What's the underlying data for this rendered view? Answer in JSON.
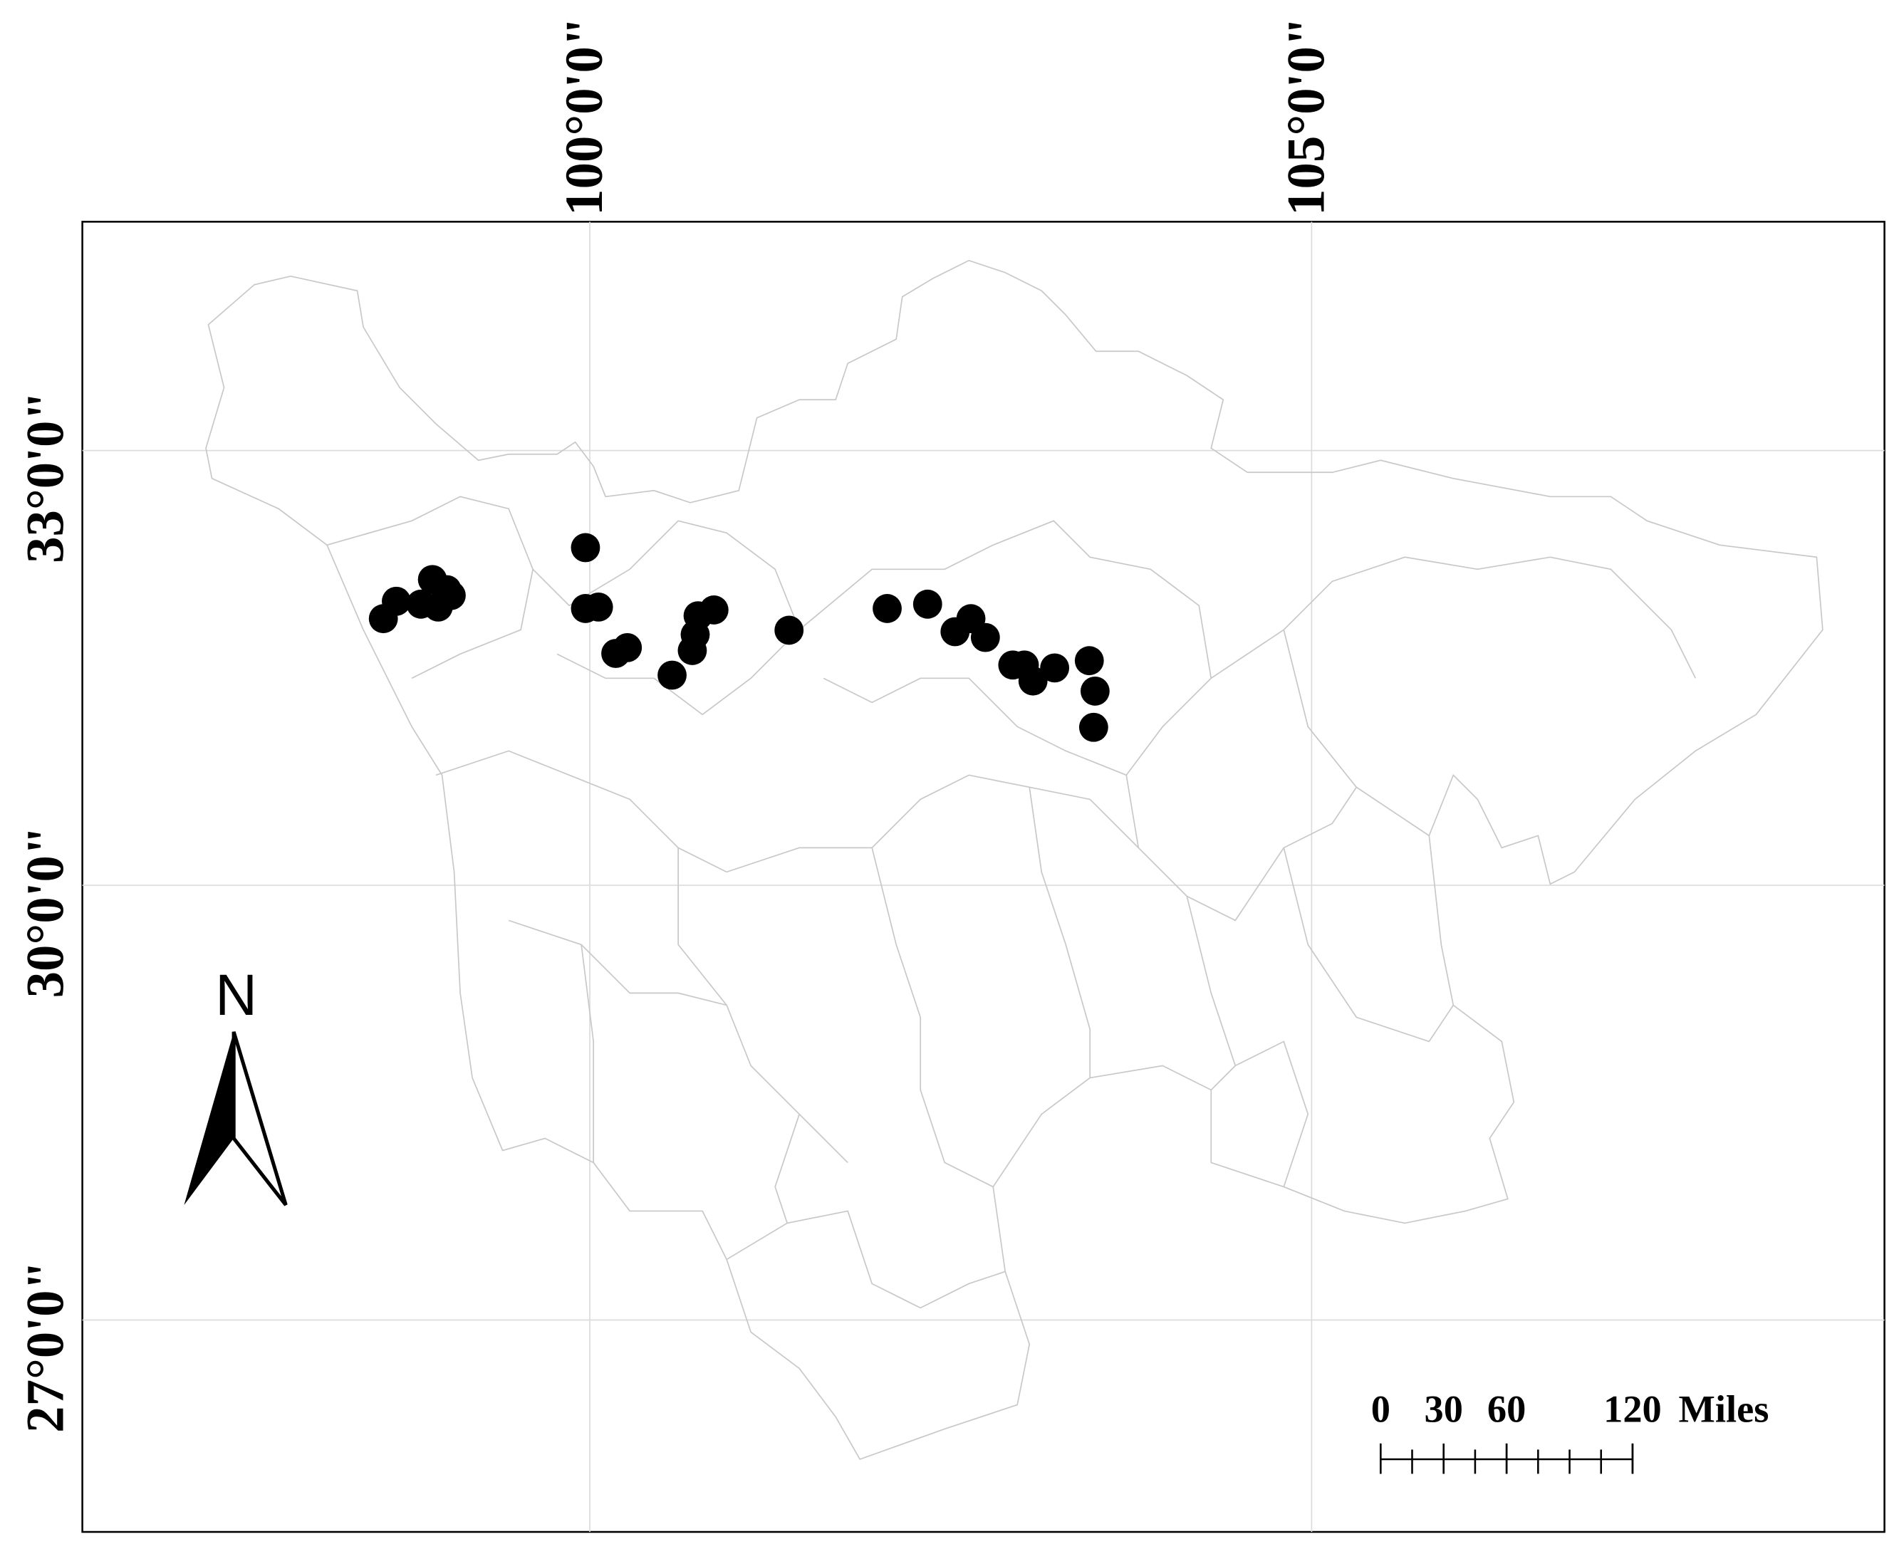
{
  "chart_data": {
    "type": "map",
    "xlim": [
      96.485,
      108.968
    ],
    "ylim": [
      25.538,
      34.579
    ],
    "xticks": [
      {
        "value": 100,
        "label": "100°0'0\""
      },
      {
        "value": 105,
        "label": "105°0'0\""
      }
    ],
    "yticks": [
      {
        "value": 27,
        "label": "27°0'0\""
      },
      {
        "value": 30,
        "label": "30°0'0\""
      },
      {
        "value": 33,
        "label": "33°0'0\""
      }
    ],
    "grid": true,
    "north_arrow": "N",
    "scale_bar": {
      "ticks": [
        0,
        30,
        60,
        120
      ],
      "unit": "Miles"
    },
    "points": {
      "color": "#000000",
      "x": [
        98.57,
        98.66,
        98.91,
        98.83,
        98.95,
        99.01,
        99.04,
        99.97,
        99.97,
        100.06,
        100.18,
        100.26,
        100.57,
        100.71,
        100.73,
        100.75,
        100.86,
        101.38,
        102.06,
        102.34,
        102.53,
        102.64,
        102.74,
        102.93,
        103.01,
        103.07,
        103.22,
        103.46,
        103.5,
        103.49
      ],
      "y": [
        31.84,
        31.96,
        32.11,
        31.94,
        31.92,
        32.04,
        32.0,
        32.33,
        31.91,
        31.92,
        31.6,
        31.64,
        31.45,
        31.62,
        31.73,
        31.86,
        31.9,
        31.76,
        31.91,
        31.94,
        31.75,
        31.84,
        31.71,
        31.52,
        31.52,
        31.41,
        31.5,
        31.55,
        31.34,
        31.09
      ]
    }
  }
}
